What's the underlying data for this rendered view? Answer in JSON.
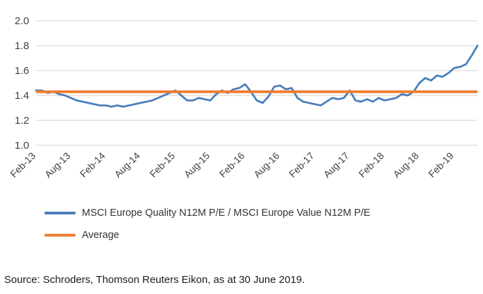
{
  "chart_data": {
    "type": "line",
    "title": "",
    "xlabel": "",
    "ylabel": "",
    "ylim": [
      1.0,
      2.0
    ],
    "ytick_step": 0.2,
    "x_tick_every": 6,
    "grid": "horizontal",
    "legend_position": "bottom-left",
    "average": 1.43,
    "colors": {
      "series": "#4a7ebb",
      "average": "#ed7d31",
      "grid": "#d9d9d9",
      "text": "#404040"
    },
    "x": [
      "Feb-13",
      "Mar-13",
      "Apr-13",
      "May-13",
      "Jun-13",
      "Jul-13",
      "Aug-13",
      "Sep-13",
      "Oct-13",
      "Nov-13",
      "Dec-13",
      "Jan-14",
      "Feb-14",
      "Mar-14",
      "Apr-14",
      "May-14",
      "Jun-14",
      "Jul-14",
      "Aug-14",
      "Sep-14",
      "Oct-14",
      "Nov-14",
      "Dec-14",
      "Jan-15",
      "Feb-15",
      "Mar-15",
      "Apr-15",
      "May-15",
      "Jun-15",
      "Jul-15",
      "Aug-15",
      "Sep-15",
      "Oct-15",
      "Nov-15",
      "Dec-15",
      "Jan-16",
      "Feb-16",
      "Mar-16",
      "Apr-16",
      "May-16",
      "Jun-16",
      "Jul-16",
      "Aug-16",
      "Sep-16",
      "Oct-16",
      "Nov-16",
      "Dec-16",
      "Jan-17",
      "Feb-17",
      "Mar-17",
      "Apr-17",
      "May-17",
      "Jun-17",
      "Jul-17",
      "Aug-17",
      "Sep-17",
      "Oct-17",
      "Nov-17",
      "Dec-17",
      "Jan-18",
      "Feb-18",
      "Mar-18",
      "Apr-18",
      "May-18",
      "Jun-18",
      "Jul-18",
      "Aug-18",
      "Sep-18",
      "Oct-18",
      "Nov-18",
      "Dec-18",
      "Jan-19",
      "Feb-19",
      "Mar-19",
      "Apr-19",
      "May-19",
      "Jun-19"
    ],
    "xticks": [
      "Feb-13",
      "Aug-13",
      "Feb-14",
      "Aug-14",
      "Feb-15",
      "Aug-15",
      "Feb-16",
      "Aug-16",
      "Feb-17",
      "Aug-17",
      "Feb-18",
      "Aug-18",
      "Feb-19"
    ],
    "yticks": [
      "1.0",
      "1.2",
      "1.4",
      "1.6",
      "1.8",
      "2.0"
    ],
    "series": [
      {
        "name": "MSCI Europe Quality N12M P/E / MSCI Europe Value N12M P/E",
        "values": [
          1.44,
          1.44,
          1.42,
          1.43,
          1.41,
          1.4,
          1.38,
          1.36,
          1.35,
          1.34,
          1.33,
          1.32,
          1.32,
          1.31,
          1.32,
          1.31,
          1.32,
          1.33,
          1.34,
          1.35,
          1.36,
          1.38,
          1.4,
          1.42,
          1.44,
          1.4,
          1.36,
          1.36,
          1.38,
          1.37,
          1.36,
          1.41,
          1.44,
          1.42,
          1.45,
          1.46,
          1.49,
          1.43,
          1.36,
          1.34,
          1.39,
          1.47,
          1.48,
          1.45,
          1.46,
          1.38,
          1.35,
          1.34,
          1.33,
          1.32,
          1.35,
          1.38,
          1.37,
          1.38,
          1.44,
          1.36,
          1.35,
          1.37,
          1.35,
          1.38,
          1.36,
          1.37,
          1.38,
          1.41,
          1.4,
          1.43,
          1.5,
          1.54,
          1.52,
          1.56,
          1.55,
          1.58,
          1.62,
          1.63,
          1.65,
          1.72,
          1.8
        ]
      },
      {
        "name": "Average",
        "values": [
          1.43
        ]
      }
    ]
  },
  "legend": [
    {
      "label": "MSCI Europe Quality N12M P/E / MSCI Europe Value N12M P/E",
      "color": "#4a7ebb"
    },
    {
      "label": "Average",
      "color": "#ed7d31"
    }
  ],
  "source": "Source: Schroders, Thomson Reuters Eikon, as at 30 June 2019."
}
